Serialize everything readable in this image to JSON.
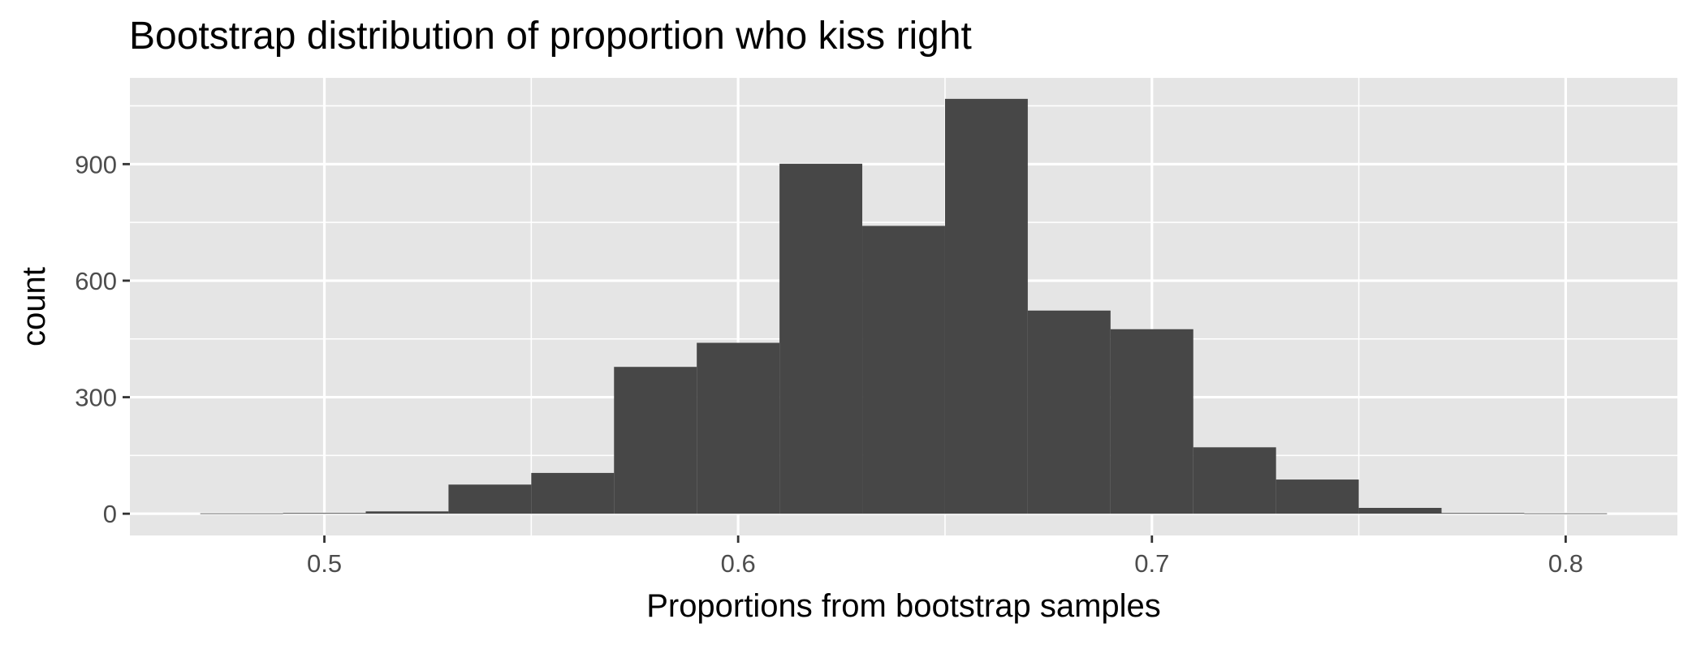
{
  "chart_data": {
    "type": "bar",
    "subtype": "histogram",
    "title": "Bootstrap distribution of proportion who kiss right",
    "xlabel": "Proportions from bootstrap samples",
    "ylabel": "count",
    "xlim": [
      0.453,
      0.827
    ],
    "ylim": [
      -56,
      1122
    ],
    "x_ticks": [
      {
        "value": 0.5,
        "label": "0.5"
      },
      {
        "value": 0.6,
        "label": "0.6"
      },
      {
        "value": 0.7,
        "label": "0.7"
      },
      {
        "value": 0.8,
        "label": "0.8"
      }
    ],
    "y_ticks": [
      {
        "value": 0,
        "label": "0"
      },
      {
        "value": 300,
        "label": "300"
      },
      {
        "value": 600,
        "label": "600"
      },
      {
        "value": 900,
        "label": "900"
      }
    ],
    "x_minor_ticks": [
      0.55,
      0.65,
      0.75
    ],
    "y_minor_ticks": [
      150,
      450,
      750,
      1050
    ],
    "bins": [
      {
        "x0": 0.47,
        "x1": 0.49,
        "count": 1
      },
      {
        "x0": 0.49,
        "x1": 0.51,
        "count": 2
      },
      {
        "x0": 0.51,
        "x1": 0.53,
        "count": 6
      },
      {
        "x0": 0.53,
        "x1": 0.55,
        "count": 75
      },
      {
        "x0": 0.55,
        "x1": 0.57,
        "count": 105
      },
      {
        "x0": 0.57,
        "x1": 0.59,
        "count": 378
      },
      {
        "x0": 0.59,
        "x1": 0.61,
        "count": 440
      },
      {
        "x0": 0.61,
        "x1": 0.63,
        "count": 901
      },
      {
        "x0": 0.63,
        "x1": 0.65,
        "count": 741
      },
      {
        "x0": 0.65,
        "x1": 0.67,
        "count": 1068
      },
      {
        "x0": 0.67,
        "x1": 0.69,
        "count": 523
      },
      {
        "x0": 0.69,
        "x1": 0.71,
        "count": 475
      },
      {
        "x0": 0.71,
        "x1": 0.73,
        "count": 171
      },
      {
        "x0": 0.73,
        "x1": 0.75,
        "count": 88
      },
      {
        "x0": 0.75,
        "x1": 0.77,
        "count": 15
      },
      {
        "x0": 0.77,
        "x1": 0.79,
        "count": 2
      },
      {
        "x0": 0.79,
        "x1": 0.81,
        "count": 1
      }
    ],
    "grid": true,
    "legend": "none",
    "colors": {
      "panel_background": "#e5e5e5",
      "grid": "#ffffff",
      "bar_fill": "#474747"
    }
  }
}
